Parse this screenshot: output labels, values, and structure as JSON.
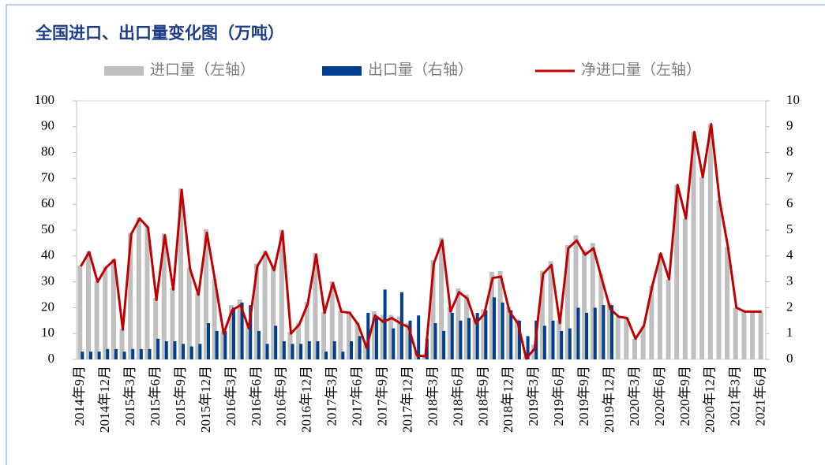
{
  "chart_data": {
    "type": "bar",
    "title": "全国进口、出口量变化图（万吨）",
    "categories": [
      "2014年9月",
      null,
      null,
      "2014年12月",
      null,
      null,
      "2015年3月",
      null,
      null,
      "2015年6月",
      null,
      null,
      "2015年9月",
      null,
      null,
      "2015年12月",
      null,
      null,
      "2016年3月",
      null,
      null,
      "2016年6月",
      null,
      null,
      "2016年9月",
      null,
      null,
      "2016年12月",
      null,
      null,
      "2017年3月",
      null,
      null,
      "2017年6月",
      null,
      null,
      "2017年9月",
      null,
      null,
      "2017年12月",
      null,
      null,
      "2018年3月",
      null,
      null,
      "2018年6月",
      null,
      null,
      "2018年9月",
      null,
      null,
      "2018年12月",
      null,
      null,
      "2019年3月",
      null,
      null,
      "2019年6月",
      null,
      null,
      "2019年9月",
      null,
      null,
      "2019年12月",
      null,
      null,
      "2020年3月",
      null,
      null,
      "2020年6月",
      null,
      null,
      "2020年9月",
      null,
      null,
      "2020年12月",
      null,
      null,
      "2021年3月",
      null,
      null,
      "2021年6月"
    ],
    "series": [
      {
        "name": "进口量（左轴）",
        "type": "bar",
        "color": "#bfbfbf",
        "values": [
          36.3,
          41.8,
          30.3,
          35.9,
          38.9,
          11.8,
          48.9,
          54.9,
          51.4,
          23.8,
          48.7,
          27.7,
          66.1,
          35.5,
          25.6,
          50.4,
          31.1,
          11.1,
          21,
          23.2,
          14.1,
          37.1,
          42.1,
          35.8,
          50.2,
          10.6,
          14.1,
          22.2,
          41.2,
          18.3,
          30.2,
          18.8,
          18.7,
          14.4,
          6.3,
          18.6,
          17.2,
          17.2,
          16.6,
          14,
          3.2,
          2,
          38.4,
          47.1,
          20.3,
          27.5,
          25.1,
          15.8,
          19.4,
          33.9,
          34.2,
          20.4,
          15.5,
          1.2,
          5.7,
          34.3,
          38,
          15.1,
          44.2,
          48,
          42.3,
          45,
          33.1,
          21.6,
          16.5,
          16,
          8,
          13,
          28.5,
          41,
          31,
          67.5,
          54.5,
          88,
          70.5,
          91,
          61.5,
          43.5,
          20,
          18.5,
          18.5,
          18.5
        ]
      },
      {
        "name": "出口量（右轴）",
        "type": "bar",
        "axis": "y2",
        "color": "#003f8f",
        "values": [
          0.3,
          0.3,
          0.3,
          0.4,
          0.4,
          0.3,
          0.4,
          0.4,
          0.4,
          0.8,
          0.7,
          0.7,
          0.6,
          0.5,
          0.6,
          1.4,
          1.1,
          1.1,
          2.0,
          2.2,
          2.1,
          1.1,
          0.6,
          1.3,
          0.7,
          0.6,
          0.6,
          0.7,
          0.7,
          0.3,
          0.7,
          0.3,
          0.7,
          0.9,
          1.8,
          1.6,
          2.7,
          1.2,
          2.6,
          1.5,
          1.7,
          0.8,
          1.4,
          1.1,
          1.8,
          1.5,
          1.6,
          1.8,
          1.9,
          2.4,
          2.2,
          1.9,
          1.5,
          0.9,
          1.5,
          1.3,
          1.5,
          1.1,
          1.2,
          2.0,
          1.8,
          2.0,
          2.1,
          2.1,
          null,
          null,
          null,
          null,
          null,
          null,
          null,
          null,
          null,
          null,
          null,
          null,
          null,
          null,
          null,
          null,
          null,
          null
        ]
      },
      {
        "name": "净进口量（左轴）",
        "type": "line",
        "color": "#c00000",
        "values": [
          36,
          41.5,
          30,
          35.5,
          38.5,
          11.5,
          48.5,
          54.5,
          51,
          23,
          48,
          27,
          65.5,
          35,
          25,
          49,
          30,
          10,
          19,
          21,
          12,
          36,
          41.5,
          34.5,
          49.5,
          10,
          13.5,
          21.5,
          40.5,
          18,
          29.5,
          18.5,
          18,
          13.5,
          4.5,
          17,
          14.5,
          16,
          14,
          12.5,
          1.5,
          1.2,
          37,
          46,
          18.5,
          26,
          23.5,
          14,
          17.5,
          31.5,
          32,
          18.5,
          14,
          0.3,
          4.2,
          33,
          36.5,
          14,
          43,
          46,
          40.5,
          43,
          31,
          19.5,
          16.5,
          16,
          8,
          13,
          28.5,
          41,
          31,
          67.5,
          54.5,
          88,
          70.5,
          91,
          61.5,
          43.5,
          20,
          18.5,
          18.5,
          18.5
        ]
      }
    ],
    "ylim": [
      0,
      100
    ],
    "yticks": [
      0,
      10,
      20,
      30,
      40,
      50,
      60,
      70,
      80,
      90,
      100
    ],
    "y2lim": [
      0,
      10
    ],
    "y2ticks": [
      0,
      1,
      2,
      3,
      4,
      5,
      6,
      7,
      8,
      9,
      10
    ]
  }
}
